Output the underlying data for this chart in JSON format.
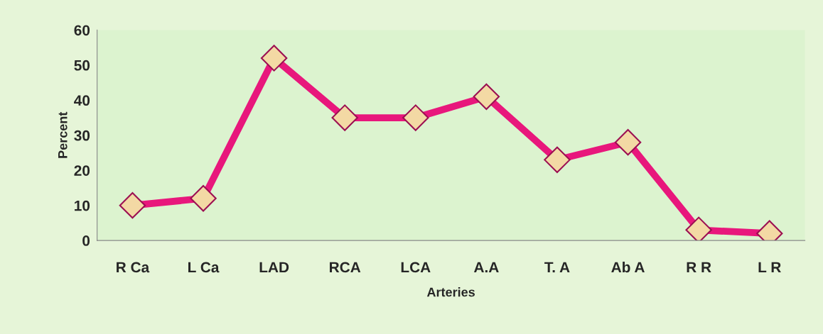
{
  "chart_data": {
    "type": "line",
    "xlabel": "Arteries",
    "ylabel": "Percent",
    "categories": [
      "R Ca",
      "L Ca",
      "LAD",
      "RCA",
      "LCA",
      "A.A",
      "T. A",
      "Ab A",
      "R R",
      "L R"
    ],
    "series": [
      {
        "color": "#e8177c",
        "values": [
          10,
          12,
          52,
          35,
          35,
          41,
          23,
          28,
          3,
          2
        ]
      }
    ],
    "ylim": [
      0,
      60
    ],
    "yticks": [
      0,
      10,
      20,
      30,
      40,
      50,
      60
    ],
    "grid": false,
    "marker": "diamond",
    "line_style": "solid"
  }
}
